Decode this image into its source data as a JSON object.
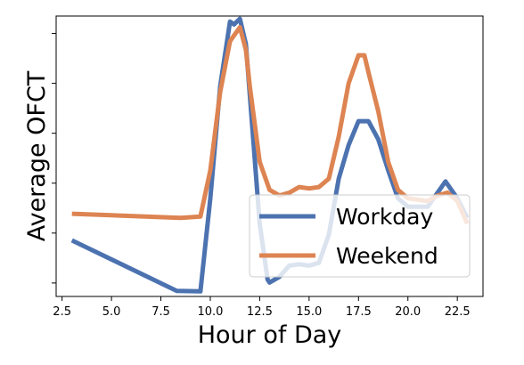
{
  "chart_data": {
    "type": "line",
    "title": "",
    "xlabel": "Hour of Day",
    "ylabel": "Average OFCT",
    "xlim": [
      2.2,
      23.8
    ],
    "ylim": [
      0,
      1
    ],
    "x_ticks": [
      2.5,
      5.0,
      7.5,
      10.0,
      12.5,
      15.0,
      17.5,
      20.0,
      22.5
    ],
    "x_tick_labels": [
      "2.5",
      "5.0",
      "7.5",
      "10.0",
      "12.5",
      "15.0",
      "17.5",
      "20.0",
      "22.5"
    ],
    "y_ticks": [
      0.048,
      0.226,
      0.404,
      0.582,
      0.76,
      0.938
    ],
    "y_tick_labels": [
      "",
      "",
      "",
      "",
      "",
      ""
    ],
    "grid": false,
    "legend_position": "lower-right",
    "series": [
      {
        "name": "Workday",
        "color": "#4c72b0",
        "x": [
          3.0,
          8.3,
          9.5,
          10.0,
          10.5,
          11.0,
          11.2,
          11.5,
          11.8,
          12.0,
          12.5,
          12.9,
          13.0,
          13.5,
          14.0,
          14.5,
          15.0,
          15.5,
          16.0,
          16.5,
          17.0,
          17.5,
          18.0,
          18.5,
          19.0,
          19.5,
          20.0,
          21.0,
          21.9,
          22.5,
          23.0
        ],
        "y": [
          0.2,
          0.02,
          0.018,
          0.35,
          0.75,
          0.98,
          0.97,
          0.99,
          0.9,
          0.72,
          0.26,
          0.06,
          0.05,
          0.07,
          0.11,
          0.115,
          0.11,
          0.12,
          0.22,
          0.42,
          0.54,
          0.625,
          0.625,
          0.56,
          0.45,
          0.35,
          0.32,
          0.32,
          0.41,
          0.35,
          0.28
        ]
      },
      {
        "name": "Weekend",
        "color": "#dd8452",
        "x": [
          3.0,
          8.5,
          9.5,
          10.0,
          10.5,
          11.0,
          11.5,
          11.8,
          12.0,
          12.5,
          13.0,
          13.5,
          14.0,
          14.5,
          15.0,
          15.5,
          16.0,
          16.5,
          17.0,
          17.5,
          17.8,
          18.0,
          18.5,
          19.0,
          19.5,
          20.0,
          21.0,
          21.5,
          22.0,
          22.5,
          23.0
        ],
        "y": [
          0.295,
          0.28,
          0.285,
          0.45,
          0.73,
          0.91,
          0.96,
          0.88,
          0.75,
          0.48,
          0.38,
          0.36,
          0.37,
          0.39,
          0.385,
          0.39,
          0.42,
          0.57,
          0.76,
          0.86,
          0.86,
          0.8,
          0.66,
          0.48,
          0.38,
          0.35,
          0.34,
          0.36,
          0.37,
          0.34,
          0.26
        ]
      }
    ]
  }
}
